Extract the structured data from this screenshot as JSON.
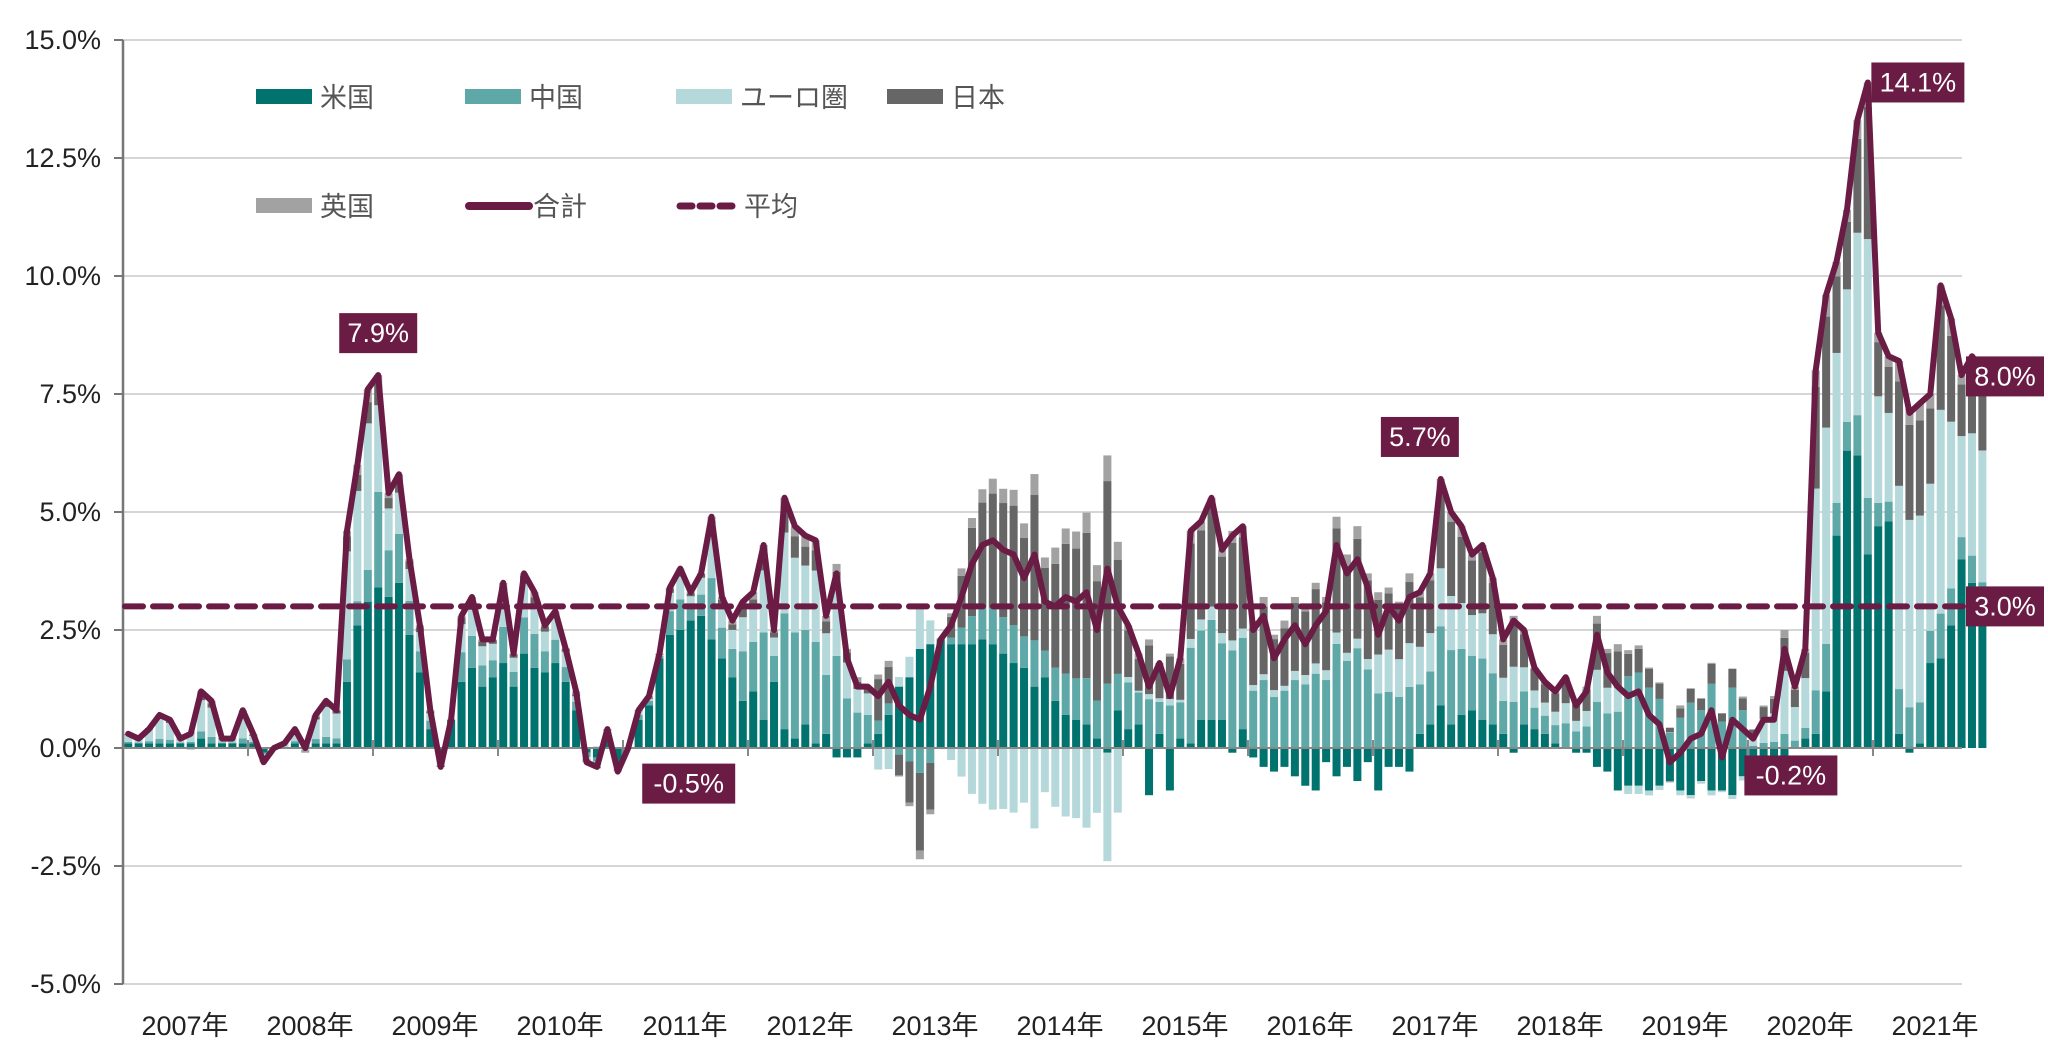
{
  "chart_data": {
    "type": "bar",
    "subtype": "stacked-bar-with-line",
    "title": "",
    "xlabel": "",
    "ylabel": "",
    "ylim": [
      -5.0,
      15.0
    ],
    "yticks": [
      -5.0,
      -2.5,
      0.0,
      2.5,
      5.0,
      7.5,
      10.0,
      12.5,
      15.0
    ],
    "ytick_labels": [
      "-5.0%",
      "-2.5%",
      "0.0%",
      "2.5%",
      "5.0%",
      "7.5%",
      "10.0%",
      "12.5%",
      "15.0%"
    ],
    "grid": true,
    "x_start": "2007-01",
    "frequency": "monthly",
    "xtick_labels": [
      "2007年",
      "2008年",
      "2009年",
      "2010年",
      "2011年",
      "2012年",
      "2013年",
      "2014年",
      "2015年",
      "2016年",
      "2017年",
      "2018年",
      "2019年",
      "2020年",
      "2021年"
    ],
    "legend_position": "top-left",
    "legend": [
      {
        "name": "米国",
        "type": "bar",
        "color": "#00736f"
      },
      {
        "name": "中国",
        "type": "bar",
        "color": "#5fa8a8"
      },
      {
        "name": "ユーロ圏",
        "type": "bar",
        "color": "#b5d9db"
      },
      {
        "name": "日本",
        "type": "bar",
        "color": "#666666"
      },
      {
        "name": "英国",
        "type": "bar",
        "color": "#a2a2a2"
      },
      {
        "name": "合計",
        "type": "line",
        "color": "#6b1c45"
      },
      {
        "name": "平均",
        "type": "dashed-line",
        "color": "#6b1c45"
      }
    ],
    "average": 3.0,
    "total": [
      0.3,
      0.2,
      0.4,
      0.7,
      0.6,
      0.2,
      0.3,
      1.2,
      1.0,
      0.2,
      0.2,
      0.8,
      0.3,
      -0.3,
      0.0,
      0.1,
      0.4,
      0.0,
      0.7,
      1.0,
      0.8,
      4.6,
      6.0,
      7.6,
      7.9,
      5.4,
      5.8,
      4.0,
      2.6,
      0.8,
      -0.4,
      0.6,
      2.8,
      3.2,
      2.3,
      2.3,
      3.5,
      2.0,
      3.7,
      3.3,
      2.6,
      2.9,
      2.1,
      1.2,
      -0.3,
      -0.4,
      0.4,
      -0.5,
      0.0,
      0.8,
      1.1,
      2.0,
      3.4,
      3.8,
      3.3,
      3.7,
      4.9,
      3.2,
      2.7,
      3.1,
      3.3,
      4.3,
      2.5,
      5.3,
      4.7,
      4.5,
      4.4,
      2.8,
      3.7,
      1.9,
      1.3,
      1.3,
      1.1,
      1.4,
      0.9,
      0.7,
      0.6,
      1.3,
      2.3,
      2.6,
      3.2,
      3.9,
      4.3,
      4.4,
      4.2,
      4.1,
      3.6,
      4.1,
      3.1,
      3.0,
      3.2,
      3.1,
      3.3,
      2.5,
      3.8,
      3.0,
      2.6,
      2.0,
      1.3,
      1.8,
      1.1,
      1.9,
      4.6,
      4.8,
      5.3,
      4.2,
      4.5,
      4.7,
      2.5,
      2.8,
      1.9,
      2.3,
      2.6,
      2.2,
      2.6,
      2.9,
      4.3,
      3.7,
      4.0,
      3.4,
      2.4,
      3.0,
      2.7,
      3.2,
      3.3,
      3.7,
      5.7,
      5.0,
      4.7,
      4.1,
      4.3,
      3.6,
      2.3,
      2.7,
      2.5,
      1.7,
      1.4,
      1.2,
      1.5,
      0.9,
      1.2,
      2.4,
      1.6,
      1.3,
      1.1,
      1.2,
      0.7,
      0.5,
      -0.3,
      -0.1,
      0.2,
      0.3,
      0.8,
      -0.2,
      0.6,
      0.4,
      0.2,
      0.6,
      0.6,
      2.1,
      1.3,
      2.1,
      8.0,
      9.6,
      10.3,
      11.4,
      13.3,
      14.1,
      8.8,
      8.3,
      8.2,
      7.1,
      7.3,
      7.5,
      9.8,
      9.1,
      7.9,
      8.3,
      8.0
    ],
    "series": [
      {
        "name": "米国",
        "values": [
          0.1,
          0.1,
          0.1,
          0.1,
          0.1,
          0.1,
          0.1,
          0.2,
          0.1,
          0.1,
          0.1,
          0.1,
          0.1,
          -0.1,
          0.0,
          0.0,
          0.1,
          0.1,
          0.1,
          0.1,
          0.1,
          1.4,
          2.6,
          3.1,
          3.4,
          3.2,
          3.5,
          2.4,
          1.6,
          0.4,
          -0.1,
          0.6,
          1.4,
          1.7,
          1.3,
          1.5,
          1.8,
          1.3,
          2.0,
          1.7,
          1.6,
          1.8,
          1.4,
          0.8,
          -0.1,
          -0.2,
          0.2,
          -0.3,
          0.0,
          0.6,
          0.9,
          1.9,
          2.4,
          2.5,
          2.7,
          2.8,
          2.3,
          1.9,
          1.5,
          1.0,
          1.2,
          0.6,
          1.4,
          0.4,
          0.2,
          0.5,
          0.1,
          0.3,
          -0.2,
          -0.2,
          -0.2,
          0.1,
          0.3,
          0.7,
          1.3,
          1.5,
          2.1,
          2.2,
          2.3,
          2.2,
          2.2,
          2.2,
          2.3,
          2.2,
          2.0,
          1.8,
          1.7,
          1.3,
          1.5,
          1.0,
          0.7,
          0.6,
          0.5,
          0.2,
          -0.1,
          0.8,
          0.4,
          0.5,
          -1.0,
          0.3,
          -0.9,
          0.2,
          0.1,
          0.6,
          0.6,
          0.6,
          -0.1,
          0.4,
          -0.2,
          -0.4,
          -0.5,
          -0.4,
          -0.6,
          -0.8,
          -0.9,
          -0.3,
          -0.6,
          -0.4,
          -0.7,
          -0.3,
          -0.9,
          -0.4,
          -0.4,
          -0.5,
          0.3,
          0.5,
          0.9,
          0.5,
          0.7,
          0.8,
          0.6,
          0.5,
          0.3,
          -0.1,
          0.5,
          0.4,
          0.3,
          0.1,
          0.0,
          -0.1,
          -0.1,
          -0.4,
          -0.5,
          -0.9,
          -0.8,
          -0.8,
          -0.9,
          -0.8,
          -0.7,
          -0.9,
          -1.0,
          -0.7,
          -0.9,
          -0.9,
          -1.0,
          -0.6,
          -0.2,
          -0.3,
          -0.5,
          -0.4,
          0.0,
          0.2,
          0.3,
          1.2,
          4.5,
          6.3,
          6.2,
          4.1,
          4.7,
          4.8,
          0.3,
          -0.1,
          0.1,
          1.8,
          1.9,
          2.6,
          4.0,
          3.5,
          2.9,
          2.7,
          3.0
        ]
      }
    ],
    "annotations": [
      {
        "label": "7.9%",
        "x": "2009-01",
        "value": 7.9
      },
      {
        "label": "-0.5%",
        "x": "2011-01",
        "value": -0.5
      },
      {
        "label": "5.7%",
        "x": "2017-05",
        "value": 5.7
      },
      {
        "label": "-0.2%",
        "x": "2019-11",
        "value": -0.2
      },
      {
        "label": "14.1%",
        "x": "2020-11",
        "value": 14.1
      },
      {
        "label": "8.0%",
        "x": "2021-07",
        "value": 8.0,
        "position": "right-edge"
      },
      {
        "label": "3.0%",
        "value": 3.0,
        "position": "right-edge",
        "refers_to": "平均"
      }
    ]
  }
}
